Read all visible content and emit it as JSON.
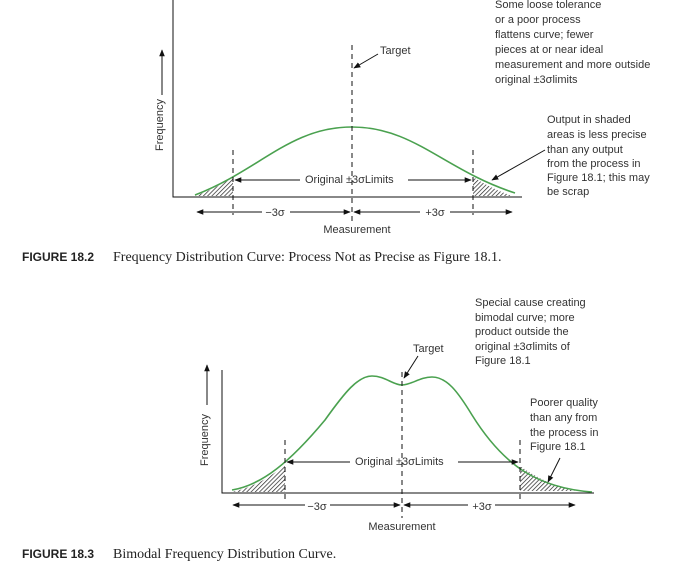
{
  "figures": [
    {
      "caption_label": "FIGURE 18.2",
      "caption_text": "Frequency Distribution Curve: Process Not as Precise as Figure 18.1.",
      "y_axis_label": "Frequency",
      "x_axis_label": "Measurement",
      "target_label": "Target",
      "limits_label": "Original ±3σLimits",
      "minus_label": "−3σ",
      "plus_label": "+3σ",
      "annotations": [
        {
          "lines": [
            "Some loose tolerance",
            "or a poor process",
            "flattens curve; fewer",
            "pieces at or near ideal",
            "measurement and more outside",
            "original ±3σlimits"
          ]
        },
        {
          "lines": [
            "Output in shaded",
            "areas is less precise",
            "than any output",
            "from the process in",
            "Figure 18.1; this may",
            "be scrap"
          ]
        }
      ]
    },
    {
      "caption_label": "FIGURE 18.3",
      "caption_text": "Bimodal Frequency Distribution Curve.",
      "y_axis_label": "Frequency",
      "x_axis_label": "Measurement",
      "target_label": "Target",
      "limits_label": "Original ±3σLimits",
      "minus_label": "−3σ",
      "plus_label": "+3σ",
      "annotations": [
        {
          "lines": [
            "Special cause creating",
            "bimodal curve; more",
            "product outside the",
            "original ±3σlimits of",
            "Figure 18.1"
          ]
        },
        {
          "lines": [
            "Poorer quality",
            "than any from",
            "the process in",
            "Figure 18.1"
          ]
        }
      ]
    }
  ]
}
